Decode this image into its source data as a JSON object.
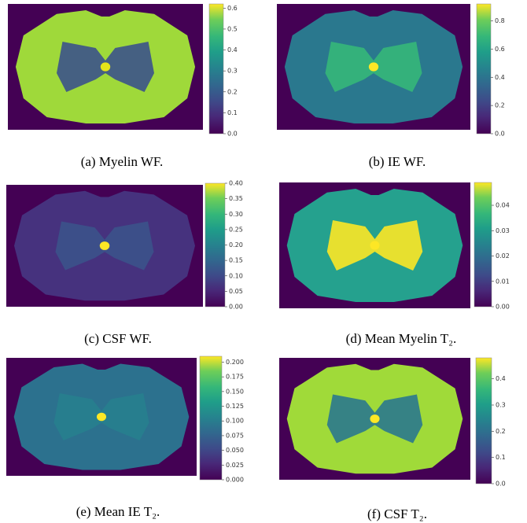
{
  "chart_data": [
    {
      "type": "heatmap",
      "caption": "(a) Myelin WF.",
      "colorbar": true,
      "ylim": [
        0,
        0.62
      ],
      "yticks": [
        {
          "value": 0,
          "label": "0.0"
        },
        0.1,
        0.2,
        0.3,
        0.4,
        0.5,
        0.6
      ]
    },
    {
      "type": "heatmap",
      "caption": "(b) IE WF.",
      "colorbar": true,
      "ylim": [
        0,
        0.92
      ],
      "yticks": [
        {
          "value": 0,
          "label": "0.0"
        },
        0.2,
        0.4,
        0.6,
        0.8
      ]
    },
    {
      "type": "heatmap",
      "caption": "(c) CSF WF.",
      "colorbar": true,
      "ylim": [
        0,
        0.4
      ],
      "yticks": [
        {
          "value": 0,
          "label": "0.00"
        },
        0.05,
        {
          "value": 0.1,
          "label": "0.10"
        },
        0.15,
        {
          "value": 0.2,
          "label": "0.20"
        },
        0.25,
        {
          "value": 0.3,
          "label": "0.30"
        },
        0.35,
        {
          "value": 0.4,
          "label": "0.40"
        }
      ]
    },
    {
      "type": "heatmap",
      "caption": "(d) Mean Myelin T₂.",
      "colorbar": true,
      "ylim": [
        0,
        0.049
      ],
      "yticks": [
        {
          "value": 0,
          "label": "0.00"
        },
        0.01,
        0.02,
        0.03,
        0.04
      ]
    },
    {
      "type": "heatmap",
      "caption": "(e) Mean IE T₂.",
      "colorbar": true,
      "ylim": [
        0,
        0.21
      ],
      "yticks": [
        {
          "value": 0,
          "label": "0.000"
        },
        0.025,
        {
          "value": 0.05,
          "label": "0.050"
        },
        0.075,
        {
          "value": 0.1,
          "label": "0.100"
        },
        0.125,
        {
          "value": 0.15,
          "label": "0.150"
        },
        0.175,
        {
          "value": 0.2,
          "label": "0.200"
        }
      ]
    },
    {
      "type": "heatmap",
      "caption": "(f) CSF T₂.",
      "colorbar": true,
      "ylim": [
        0,
        0.48
      ],
      "yticks": [
        {
          "value": 0,
          "label": "0.0"
        },
        0.1,
        0.2,
        0.3,
        0.4
      ]
    }
  ]
}
